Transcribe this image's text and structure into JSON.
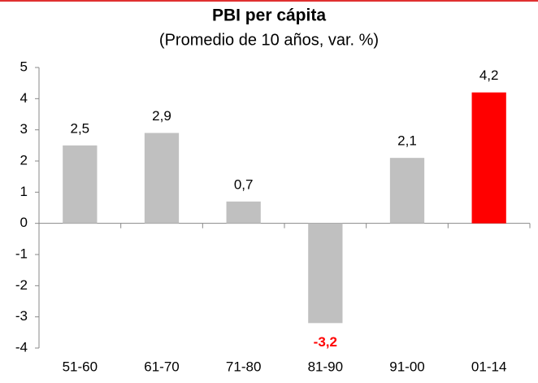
{
  "chart_data": {
    "type": "bar",
    "title": "PBI per cápita",
    "subtitle": "(Promedio de 10 años, var. %)",
    "categories": [
      "51-60",
      "61-70",
      "71-80",
      "81-90",
      "91-00",
      "01-14"
    ],
    "values": [
      2.5,
      2.9,
      0.7,
      -3.2,
      2.1,
      4.2
    ],
    "value_labels": [
      "2,5",
      "2,9",
      "0,7",
      "-3,2",
      "2,1",
      "4,2"
    ],
    "colors": [
      "#c0c0c0",
      "#c0c0c0",
      "#c0c0c0",
      "#c0c0c0",
      "#c0c0c0",
      "#ff0000"
    ],
    "ylim": [
      -4,
      5
    ],
    "yticks": [
      -4,
      -3,
      -2,
      -1,
      0,
      1,
      2,
      3,
      4,
      5
    ],
    "grid": false
  }
}
